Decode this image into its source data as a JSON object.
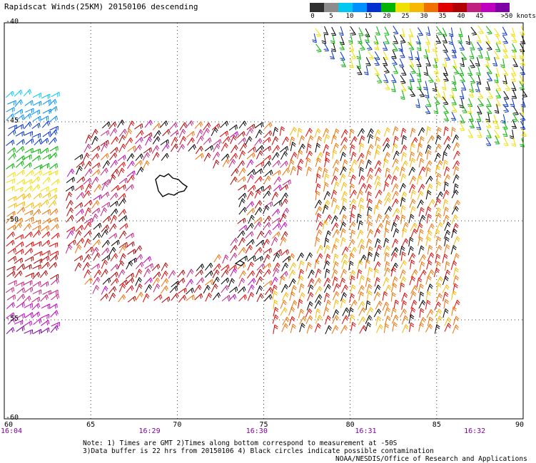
{
  "title": "Rapidscat Winds(25KM) 20150106 descending",
  "legend": {
    "labels": [
      "0",
      "5",
      "10",
      "15",
      "20",
      "25",
      "30",
      "35",
      "40",
      "45",
      ">50 knots"
    ],
    "colors": [
      "#303030",
      "#8c8c8c",
      "#00c8f0",
      "#0090ff",
      "#0030d0",
      "#00b400",
      "#f0e000",
      "#f8b800",
      "#f07000",
      "#e00000",
      "#b00000",
      "#c02080",
      "#c000c0",
      "#8000a8"
    ]
  },
  "axes": {
    "lon_ticks": [
      "60",
      "65",
      "70",
      "75",
      "80",
      "85",
      "90"
    ],
    "lat_ticks": [
      "-40",
      "-45",
      "-50",
      "-55",
      "-60"
    ],
    "time_labels": [
      {
        "lon": 60.3,
        "text": "16:04"
      },
      {
        "lon": 68.4,
        "text": "16:29"
      },
      {
        "lon": 74.6,
        "text": "16:30"
      },
      {
        "lon": 80.9,
        "text": "16:31"
      },
      {
        "lon": 87.2,
        "text": "16:32"
      }
    ],
    "lon_range": [
      60,
      90
    ],
    "lat_range": [
      -40,
      -60
    ],
    "grid": true
  },
  "notes": {
    "line1": "Note: 1) Times are GMT 2)Times along bottom correspond to measurement at -50S",
    "line2": "3)Data buffer is 22 hrs from 20150106 4) Black circles indicate possible contamination"
  },
  "credit": "NOAA/NESDIS/Office of Research and Applications",
  "colors": {
    "contamination": "#000000",
    "grid": "#000000"
  }
}
